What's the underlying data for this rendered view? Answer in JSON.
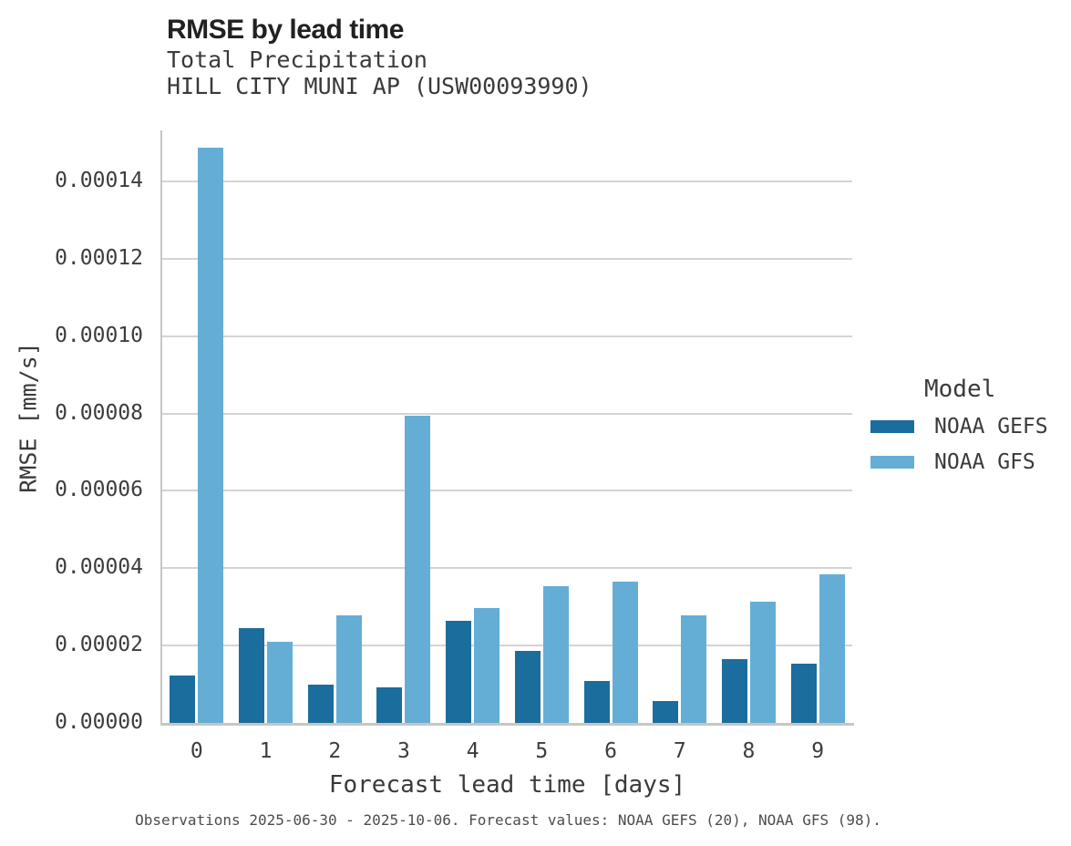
{
  "header": {
    "title": "RMSE by lead time",
    "subtitle": "Total Precipitation",
    "station": "HILL CITY MUNI AP (USW00093990)"
  },
  "legend": {
    "title": "Model",
    "entries": [
      {
        "label": "NOAA GEFS",
        "color": "#1b6d9d"
      },
      {
        "label": "NOAA GFS",
        "color": "#64aed6"
      }
    ]
  },
  "footer": {
    "caption": "Observations 2025-06-30 - 2025-10-06. Forecast values: NOAA GEFS (20), NOAA GFS (98)."
  },
  "chart_data": {
    "type": "bar",
    "title": "RMSE by lead time",
    "subtitle": "Total Precipitation",
    "station": "HILL CITY MUNI AP (USW00093990)",
    "xlabel": "Forecast lead time [days]",
    "ylabel": "RMSE [mm/s]",
    "categories": [
      "0",
      "1",
      "2",
      "3",
      "4",
      "5",
      "6",
      "7",
      "8",
      "9"
    ],
    "series": [
      {
        "name": "NOAA GEFS",
        "color": "#1b6d9d",
        "values": [
          1.23e-05,
          2.46e-05,
          1e-05,
          9.1e-06,
          2.65e-05,
          1.85e-05,
          1.08e-05,
          5.7e-06,
          1.65e-05,
          1.53e-05
        ]
      },
      {
        "name": "NOAA GFS",
        "color": "#64aed6",
        "values": [
          0.0001487,
          2.09e-05,
          2.79e-05,
          7.95e-05,
          2.98e-05,
          3.53e-05,
          3.65e-05,
          2.79e-05,
          3.13e-05,
          3.85e-05
        ]
      }
    ],
    "ylim": [
      0,
      0.0001527
    ],
    "ytick_step": 2e-05,
    "ytick_format_decimals": 5,
    "grid": true,
    "legend_position": "center-right"
  }
}
